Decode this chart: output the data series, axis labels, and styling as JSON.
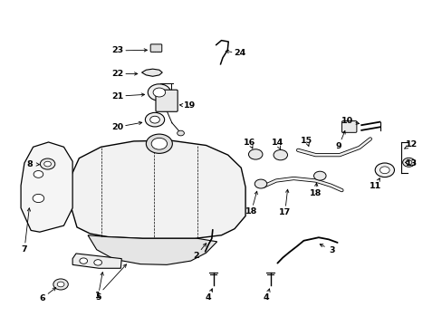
{
  "title": "",
  "background_color": "#ffffff",
  "fig_width": 4.89,
  "fig_height": 3.6,
  "dpi": 100
}
